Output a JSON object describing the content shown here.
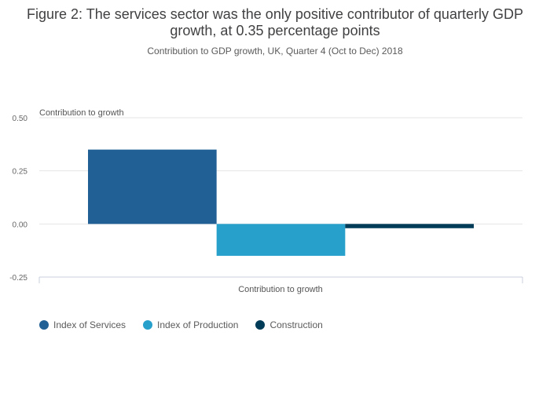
{
  "chart_title": "Figure 2: The services sector was the only positive contributor of quarterly GDP growth, at 0.35 percentage points",
  "chart_subtitle": "Contribution to GDP growth, UK, Quarter 4 (Oct to Dec) 2018",
  "chart_data": {
    "type": "bar",
    "title": "Figure 2: The services sector was the only positive contributor of quarterly GDP growth, at 0.35 percentage points",
    "subtitle": "Contribution to GDP growth, UK, Quarter 4 (Oct to Dec) 2018",
    "categories": [
      "Contribution to growth"
    ],
    "xlabel": "Contribution to growth",
    "ylabel": "Contribution to growth",
    "ylim": [
      -0.25,
      0.5
    ],
    "yticks": [
      0.5,
      0.25,
      0.0,
      -0.25
    ],
    "ytick_labels": [
      "0.50",
      "0.25",
      "0.00",
      "-0.25"
    ],
    "grid": true,
    "legend_position": "bottom-left",
    "series": [
      {
        "name": "Index of Services",
        "values": [
          0.35
        ],
        "color": "#206095"
      },
      {
        "name": "Index of Production",
        "values": [
          -0.15
        ],
        "color": "#27a0cc"
      },
      {
        "name": "Construction",
        "values": [
          -0.02
        ],
        "color": "#003c57"
      }
    ]
  }
}
